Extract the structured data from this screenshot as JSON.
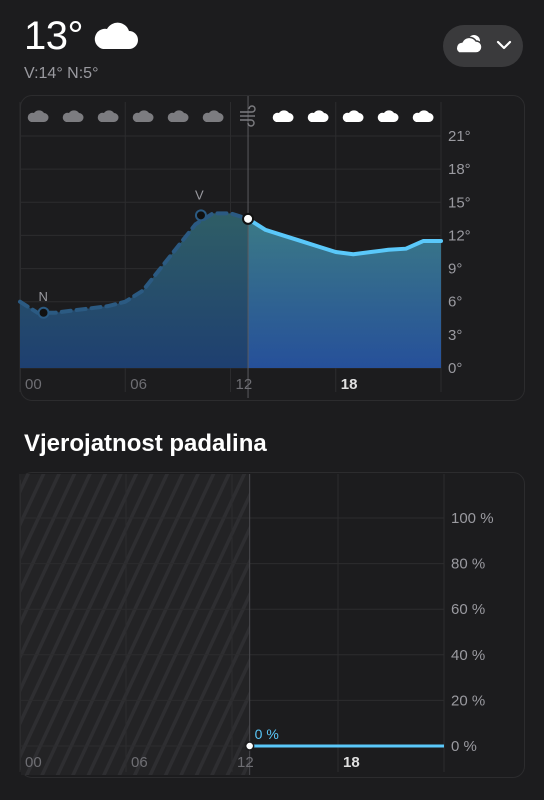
{
  "current": {
    "temperature": "13°",
    "hi_lo": "V:14° N:5°",
    "condition_icon": "cloud-icon"
  },
  "condition_selector": {
    "icon": "partly-cloudy-icon",
    "chevron": "chevron-down-icon"
  },
  "temp_chart": {
    "hour_icons": [
      "cloud",
      "cloud",
      "cloud",
      "cloud",
      "cloud",
      "cloud",
      "wind",
      "cloud",
      "cloud",
      "cloud",
      "cloud",
      "cloud"
    ],
    "y_ticks": [
      "21°",
      "18°",
      "15°",
      "12°",
      "9°",
      "6°",
      "3°",
      "0°"
    ],
    "x_ticks": [
      "00",
      "06",
      "12",
      "18"
    ],
    "markers": {
      "low": "N",
      "high": "V"
    }
  },
  "precip": {
    "title": "Vjerojatnost padalina",
    "y_ticks": [
      "100 %",
      "80 %",
      "60 %",
      "40 %",
      "20 %",
      "0 %"
    ],
    "x_ticks": [
      "00",
      "06",
      "12",
      "18"
    ],
    "current_label": "0 %"
  },
  "chart_data": [
    {
      "type": "line",
      "title": "",
      "xlabel": "",
      "ylabel": "",
      "x": [
        0,
        1,
        2,
        3,
        4,
        5,
        6,
        7,
        8,
        9,
        10,
        11,
        12,
        13,
        14,
        15,
        16,
        17,
        18,
        19,
        20,
        21,
        22,
        23,
        24
      ],
      "values": [
        6,
        5,
        5,
        5.2,
        5.4,
        5.6,
        6,
        7,
        9,
        11,
        13,
        14,
        14,
        13.5,
        12.5,
        12,
        11.5,
        11,
        10.5,
        10.3,
        10.5,
        10.7,
        10.8,
        11.5,
        11.5
      ],
      "past_until_hour": 13,
      "ylim": [
        0,
        21
      ],
      "y_ticks": [
        0,
        3,
        6,
        9,
        12,
        15,
        18,
        21
      ],
      "colors": {
        "future_line": "#5ac8fa",
        "past_line": "#2b5a82"
      }
    },
    {
      "type": "line",
      "title": "Vjerojatnost padalina",
      "x": [
        13,
        24
      ],
      "values": [
        0,
        0
      ],
      "ylim": [
        0,
        100
      ],
      "y_ticks": [
        0,
        20,
        40,
        60,
        80,
        100
      ],
      "colors": {
        "line": "#5ac8fa"
      }
    }
  ]
}
